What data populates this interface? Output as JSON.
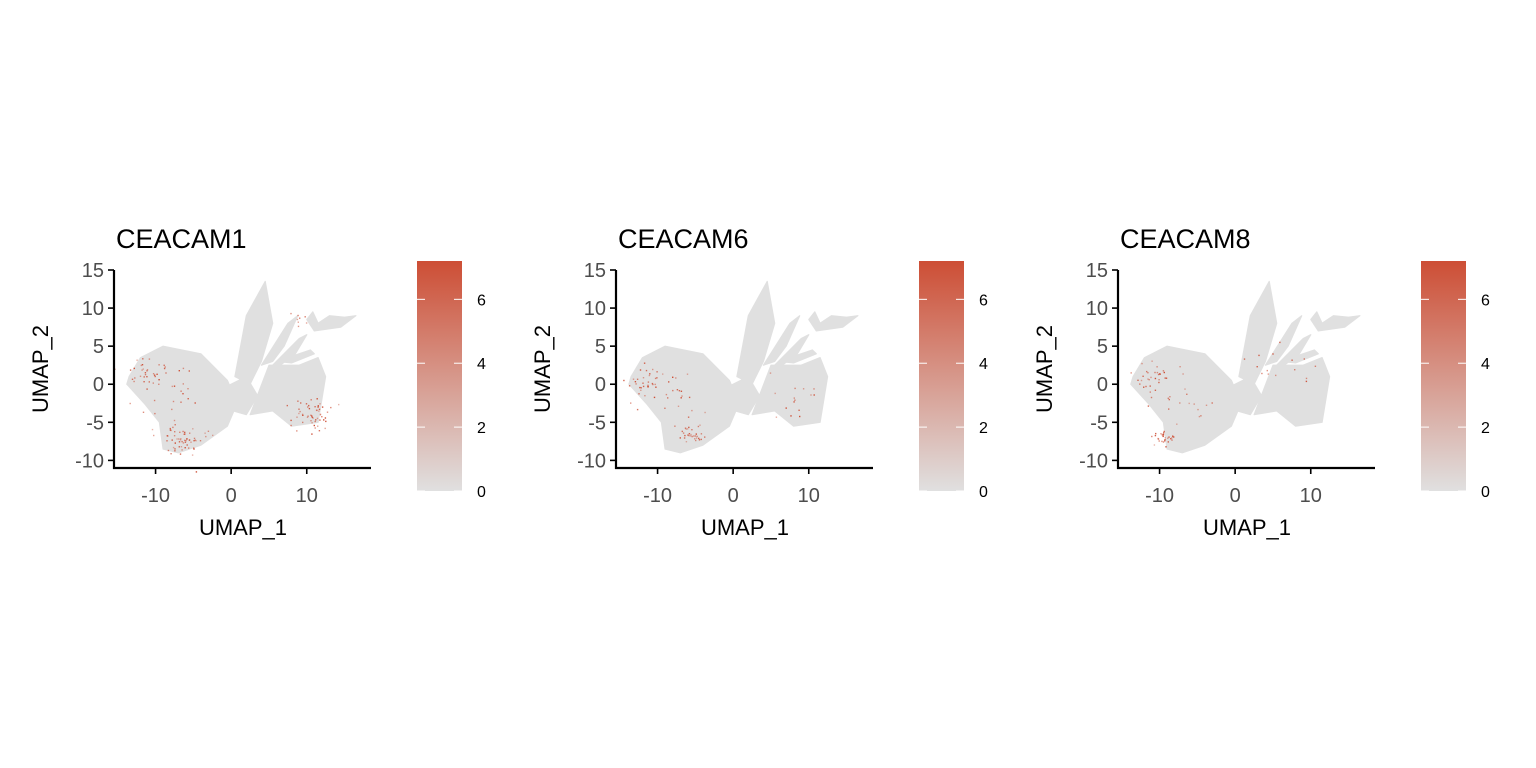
{
  "chart_data": [
    {
      "type": "scatter",
      "title": "CEACAM1",
      "xlabel": "UMAP_1",
      "ylabel": "UMAP_2",
      "xticks": [
        "-10",
        "0",
        "10"
      ],
      "yticks": [
        "-10",
        "-5",
        "0",
        "5",
        "10",
        "15"
      ],
      "xlim": [
        -15.5,
        18.5
      ],
      "ylim": [
        -11,
        15
      ],
      "grid": false,
      "legend": {
        "placement": "right",
        "ticks": [
          "0",
          "2",
          "4",
          "6"
        ],
        "range": [
          0,
          7.2
        ]
      },
      "hotspots": [
        {
          "x": -11.5,
          "y": 1.5,
          "spread": 1.2,
          "n": 30
        },
        {
          "x": -6.5,
          "y": -7.5,
          "spread": 1.4,
          "n": 60
        },
        {
          "x": 10.5,
          "y": -4.0,
          "spread": 1.5,
          "n": 55
        },
        {
          "x": 8.5,
          "y": 8.5,
          "spread": 0.6,
          "n": 8
        },
        {
          "x": -8.0,
          "y": -1.0,
          "spread": 2.5,
          "n": 25
        }
      ]
    },
    {
      "type": "scatter",
      "title": "CEACAM6",
      "xlabel": "UMAP_1",
      "ylabel": "UMAP_2",
      "xticks": [
        "-10",
        "0",
        "10"
      ],
      "yticks": [
        "-10",
        "-5",
        "0",
        "5",
        "10",
        "15"
      ],
      "xlim": [
        -15.5,
        18.5
      ],
      "ylim": [
        -11,
        15
      ],
      "grid": false,
      "legend": {
        "placement": "right",
        "ticks": [
          "0",
          "2",
          "4",
          "6"
        ],
        "range": [
          0,
          7.2
        ]
      },
      "hotspots": [
        {
          "x": -11.5,
          "y": 0.5,
          "spread": 1.2,
          "n": 35
        },
        {
          "x": -5.5,
          "y": -6.5,
          "spread": 0.9,
          "n": 30
        },
        {
          "x": 7.5,
          "y": -2.5,
          "spread": 1.8,
          "n": 15
        },
        {
          "x": -7.0,
          "y": -2.0,
          "spread": 2.5,
          "n": 20
        }
      ]
    },
    {
      "type": "scatter",
      "title": "CEACAM8",
      "xlabel": "UMAP_1",
      "ylabel": "UMAP_2",
      "xticks": [
        "-10",
        "0",
        "10"
      ],
      "yticks": [
        "-10",
        "-5",
        "0",
        "5",
        "10",
        "15"
      ],
      "xlim": [
        -15.5,
        18.5
      ],
      "ylim": [
        -11,
        15
      ],
      "grid": false,
      "legend": {
        "placement": "right",
        "ticks": [
          "0",
          "2",
          "4",
          "6"
        ],
        "range": [
          0,
          7.2
        ]
      },
      "hotspots": [
        {
          "x": -11.0,
          "y": 1.0,
          "spread": 1.3,
          "n": 30
        },
        {
          "x": -9.5,
          "y": -7.0,
          "spread": 0.9,
          "n": 30
        },
        {
          "x": 5.0,
          "y": 2.0,
          "spread": 2.5,
          "n": 15
        },
        {
          "x": -7.0,
          "y": -2.0,
          "spread": 2.5,
          "n": 18
        }
      ]
    }
  ],
  "colors": {
    "low": "#e0e0e0",
    "high": "#cd4e35",
    "axis": "#000000",
    "tick_text": "#4d4d4d"
  }
}
